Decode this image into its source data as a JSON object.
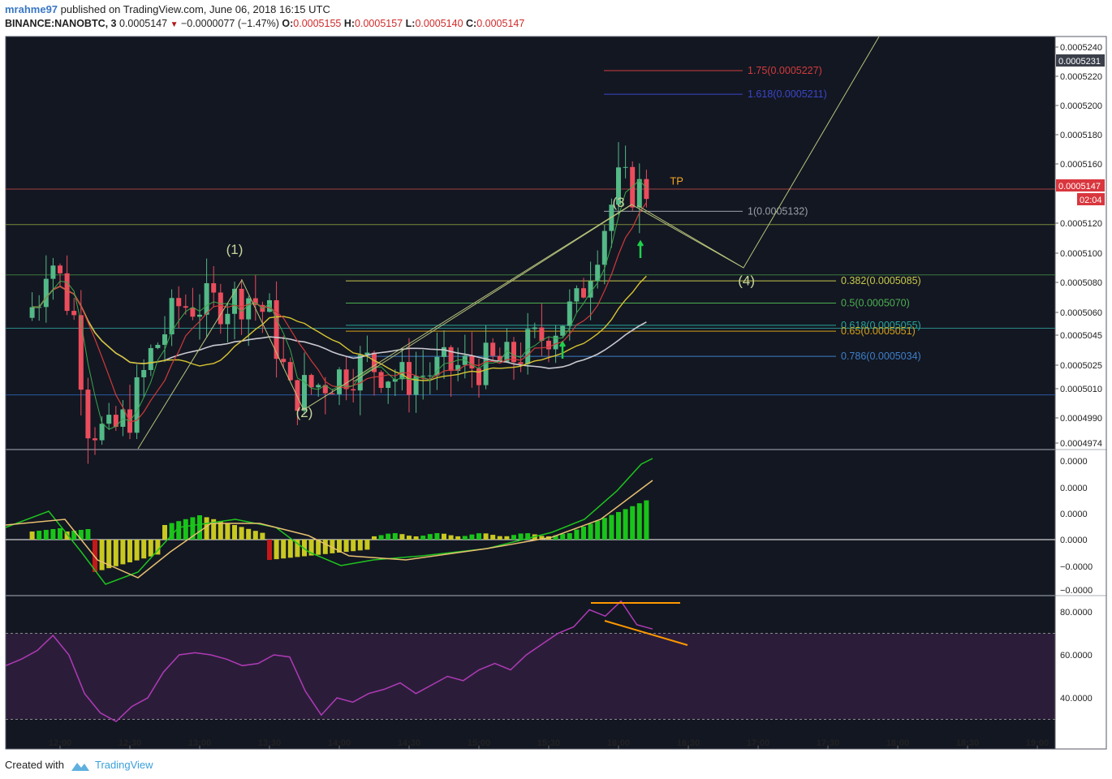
{
  "header": {
    "user": "mrahme97",
    "published": "published on TradingView.com, June 06, 2018 16:15 UTC",
    "symbol": "BINANCE:NANOBTC, 3",
    "last": "0.0005147",
    "change": "−0.0000077 (−1.47%)",
    "o_label": "O:",
    "o_value": "0.0005155",
    "h_label": "H:",
    "h_value": "0.0005157",
    "l_label": "L:",
    "l_value": "0.0005140",
    "c_label": "C:",
    "c_value": "0.0005147"
  },
  "footer": {
    "created": "Created with",
    "brand": "TradingView"
  },
  "colors": {
    "bg": "#131722",
    "up": "#53b987",
    "down": "#eb4d5c",
    "border": "#555a66",
    "fib_175": "#d23c3c",
    "fib_1618": "#3a46c8",
    "fib_1": "#9aa0a6",
    "fib_0382": "#c8c84a",
    "fib_05": "#4caf50",
    "fib_0618": "#26a69a",
    "fib_065": "#d4a017",
    "fib_0786": "#3d7fc9",
    "rsi": "#b03ab5",
    "rsi_band": "#2b1d3a",
    "trend": "#ff9800"
  },
  "chart_data": {
    "type": "candlestick",
    "x_ticks": [
      "12:00",
      "12:30",
      "13:00",
      "13:30",
      "14:00",
      "14:30",
      "15:00",
      "15:30",
      "16:00",
      "16:30",
      "17:00",
      "17:30",
      "18:00",
      "18:30",
      "19:00"
    ],
    "price_ticks": [
      "0.0005240",
      "0.0005220",
      "0.0005200",
      "0.0005180",
      "0.0005160",
      "0.0005120",
      "0.0005100",
      "0.0005080",
      "0.0005060",
      "0.0005045",
      "0.0005025",
      "0.0005010",
      "0.0004990",
      "0.0004974"
    ],
    "price_range": [
      0.00049716,
      0.000525
    ],
    "price_tags": [
      {
        "value": "0.0005231",
        "kind": "neutral"
      },
      {
        "value": "0.0005147",
        "kind": "last"
      },
      {
        "value": "02:04",
        "kind": "timer"
      }
    ],
    "fib_levels": [
      {
        "ratio": "1.75",
        "price": 0.0005227,
        "label": "1.75(0.0005227)",
        "color": "#d23c3c"
      },
      {
        "ratio": "1.618",
        "price": 0.0005211,
        "label": "1.618(0.0005211)",
        "color": "#3a46c8"
      },
      {
        "ratio": "1",
        "price": 0.0005132,
        "label": "1(0.0005132)",
        "color": "#9aa0a6"
      },
      {
        "ratio": "0.382",
        "price": 0.0005085,
        "label": "0.382(0.0005085)",
        "color": "#c8c84a"
      },
      {
        "ratio": "0.5",
        "price": 0.000507,
        "label": "0.5(0.0005070)",
        "color": "#4caf50"
      },
      {
        "ratio": "0.618",
        "price": 0.0005055,
        "label": "0.618(0.0005055)",
        "color": "#26a69a"
      },
      {
        "ratio": "0.65",
        "price": 0.0005051,
        "label": "0.65(0.0005051)",
        "color": "#d4a017"
      },
      {
        "ratio": "0.786",
        "price": 0.0005034,
        "label": "0.786(0.0005034)",
        "color": "#3d7fc9"
      }
    ],
    "wave_labels": [
      {
        "text": "(1)",
        "time": "13:15",
        "price": 0.0005103
      },
      {
        "text": "(2)",
        "time": "13:45",
        "price": 0.0004993
      },
      {
        "text": "(3",
        "time": "16:00",
        "price": 0.0005135
      },
      {
        "text": "(4)",
        "time": "16:55",
        "price": 0.0005082
      },
      {
        "text": "TP",
        "time": "16:25",
        "price": 0.000515
      }
    ],
    "macd_ticks": [
      "0.0000",
      "0.0000",
      "0.0000",
      "0.0000",
      "−0.0000",
      "−0.0000"
    ],
    "rsi_ticks": [
      "80.0000",
      "60.0000",
      "40.0000"
    ],
    "rsi_bands": [
      70,
      30
    ]
  }
}
